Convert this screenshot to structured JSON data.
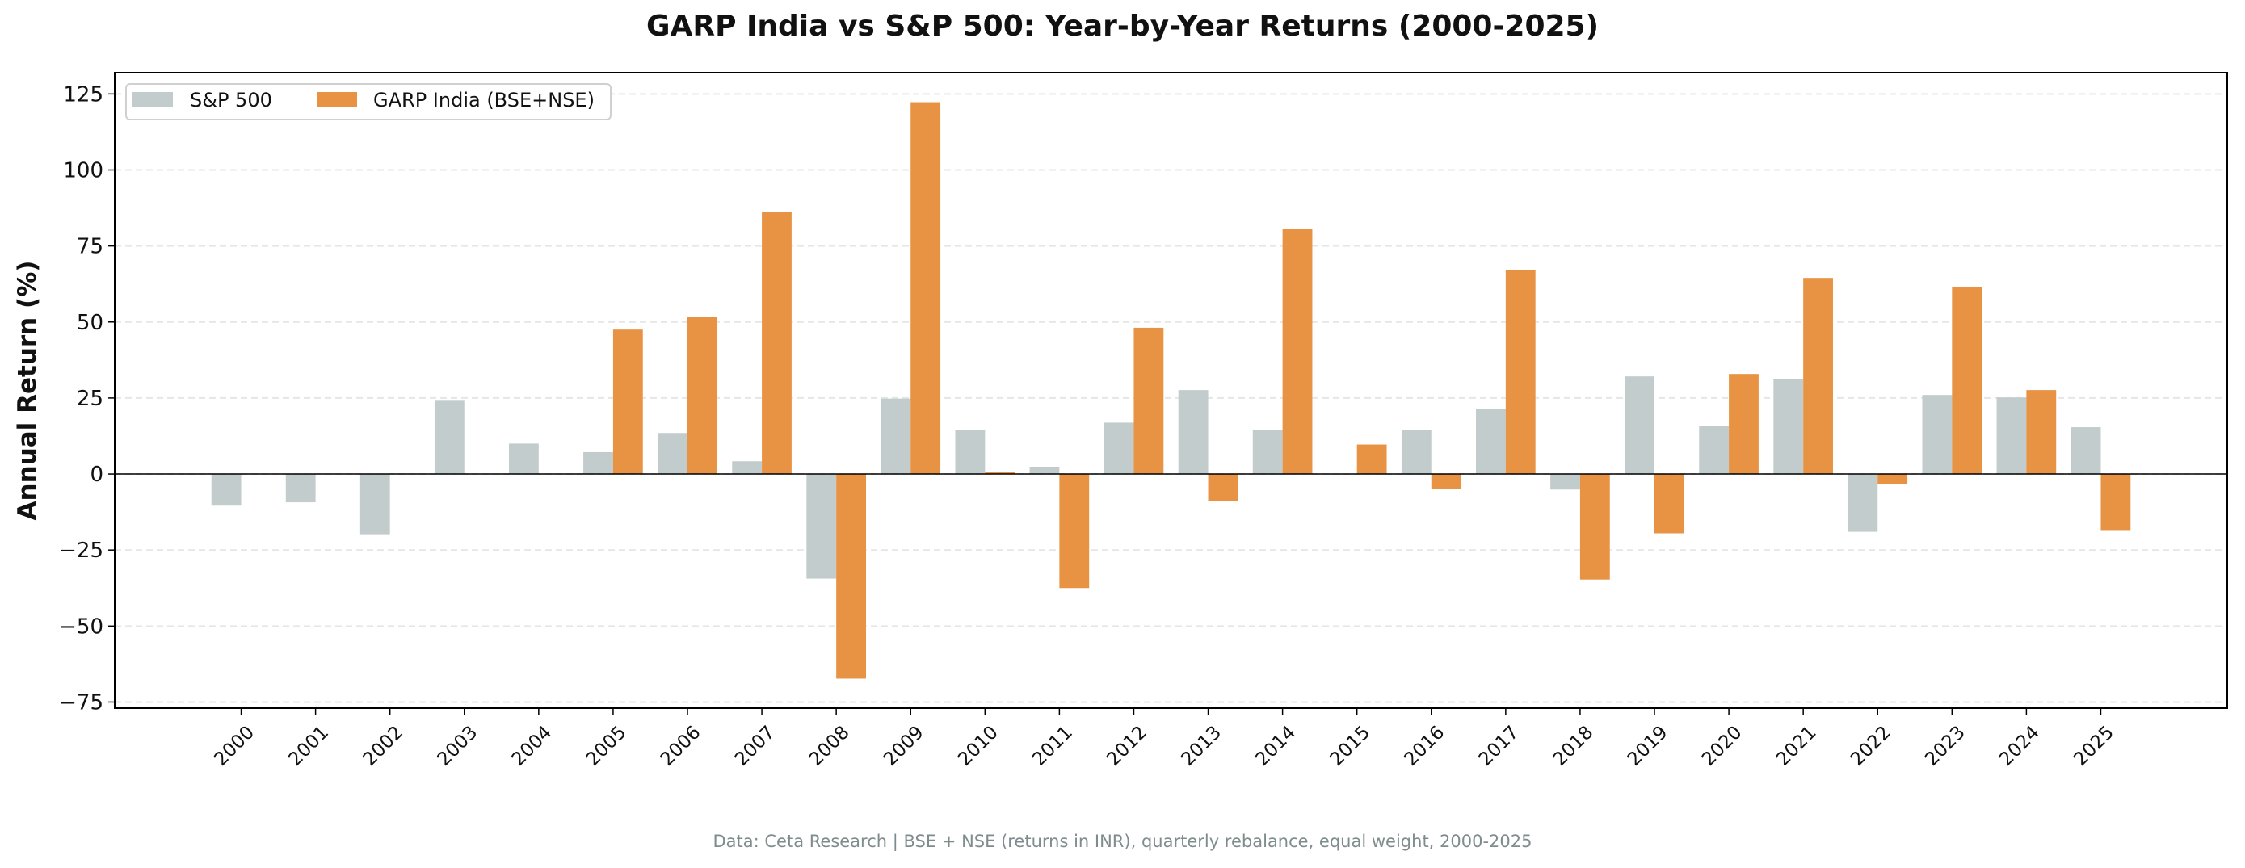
{
  "chart_data": {
    "type": "bar",
    "title": "GARP India vs S&P 500: Year-by-Year Returns (2000-2025)",
    "xlabel": "",
    "ylabel": "Annual Return (%)",
    "ylim": [
      -77,
      132
    ],
    "yticks": [
      -75,
      -50,
      -25,
      0,
      25,
      50,
      75,
      100,
      125
    ],
    "grid": true,
    "legend_position": "top-left",
    "categories": [
      "2000",
      "2001",
      "2002",
      "2003",
      "2004",
      "2005",
      "2006",
      "2007",
      "2008",
      "2009",
      "2010",
      "2011",
      "2012",
      "2013",
      "2014",
      "2015",
      "2016",
      "2017",
      "2018",
      "2019",
      "2020",
      "2021",
      "2022",
      "2023",
      "2024",
      "2025"
    ],
    "series": [
      {
        "name": "S&P 500",
        "color": "#c2cccc",
        "values": [
          -10.4,
          -9.3,
          -19.8,
          24.1,
          10.0,
          7.2,
          13.5,
          4.2,
          -34.4,
          24.8,
          14.4,
          2.4,
          16.9,
          27.6,
          14.4,
          0,
          14.4,
          21.5,
          -5.1,
          32.1,
          15.7,
          31.3,
          -19.0,
          26.0,
          25.2,
          15.4
        ]
      },
      {
        "name": "GARP India (BSE+NSE)",
        "color": "#e89344",
        "values": [
          null,
          null,
          null,
          null,
          null,
          47.5,
          51.7,
          86.3,
          -67.3,
          122.3,
          0.7,
          -37.5,
          48.1,
          -8.9,
          80.7,
          9.7,
          -4.9,
          67.2,
          -34.7,
          -19.5,
          32.9,
          64.5,
          -3.4,
          61.6,
          27.6,
          -18.7
        ]
      }
    ]
  },
  "footer": "Data: Ceta Research | BSE + NSE (returns in INR), quarterly rebalance, equal weight, 2000-2025"
}
